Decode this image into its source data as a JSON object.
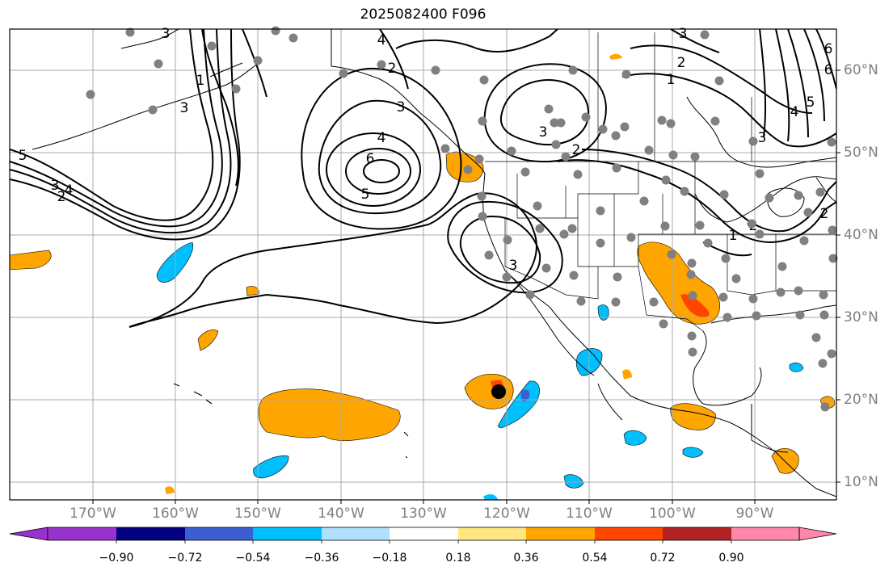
{
  "title": "2025082400 F096",
  "map": {
    "lat_labels": [
      "60°N",
      "50°N",
      "40°N",
      "30°N",
      "20°N",
      "10°N"
    ],
    "lon_labels": [
      "170°W",
      "160°W",
      "150°W",
      "140°W",
      "130°W",
      "120°W",
      "110°W",
      "100°W",
      "90°W"
    ],
    "contour_labels": [
      "6",
      "5",
      "4",
      "3",
      "2",
      "1",
      "1",
      "2",
      "3",
      "4",
      "5",
      "6",
      "3",
      "2",
      "3",
      "4",
      "3",
      "3",
      "2",
      "1",
      "2",
      "3",
      "5",
      "6",
      "4",
      "3",
      "2"
    ],
    "shading_colors": {
      "positive_light": "#ffe680",
      "positive_mid": "#ffa500",
      "positive_strong": "#ff4500",
      "negative_light": "#b0e0ff",
      "negative_mid": "#00bfff",
      "negative_strong": "#3c5fcf",
      "station_marker": "#808080",
      "storm_marker": "#000000"
    }
  },
  "colorbar": {
    "ticks": [
      "−0.90",
      "−0.72",
      "−0.54",
      "−0.36",
      "−0.18",
      "0.18",
      "0.36",
      "0.54",
      "0.72",
      "0.90"
    ],
    "colors": [
      "#9932cc",
      "#000080",
      "#3c5fcf",
      "#00bfff",
      "#b0e0ff",
      "#ffffff",
      "#ffe680",
      "#ffa500",
      "#ff4500",
      "#b22222",
      "#ff88aa"
    ]
  }
}
